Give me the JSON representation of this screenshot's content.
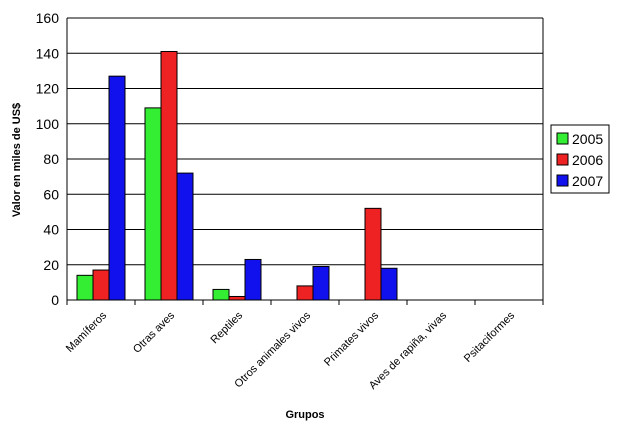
{
  "chart_data": {
    "type": "bar",
    "xlabel": "Grupos",
    "ylabel": "Valor en miles de US$",
    "ylim": [
      0,
      160
    ],
    "yticks": [
      0,
      20,
      40,
      60,
      80,
      100,
      120,
      140,
      160
    ],
    "grid": true,
    "legend_position": "right",
    "categories": [
      "Mamíferos",
      "Otras aves",
      "Reptiles",
      "Otros animales vivos",
      "Primates vivos",
      "Aves de rapiña, vivas",
      "Psitaciformes"
    ],
    "series": [
      {
        "name": "2005",
        "color": "#33ee33",
        "values": [
          14,
          109,
          6,
          0,
          0,
          0,
          0
        ]
      },
      {
        "name": "2006",
        "color": "#ee2222",
        "values": [
          17,
          141,
          2,
          8,
          52,
          0,
          0
        ]
      },
      {
        "name": "2007",
        "color": "#1111ee",
        "values": [
          127,
          72,
          23,
          19,
          18,
          0,
          0
        ]
      }
    ]
  }
}
